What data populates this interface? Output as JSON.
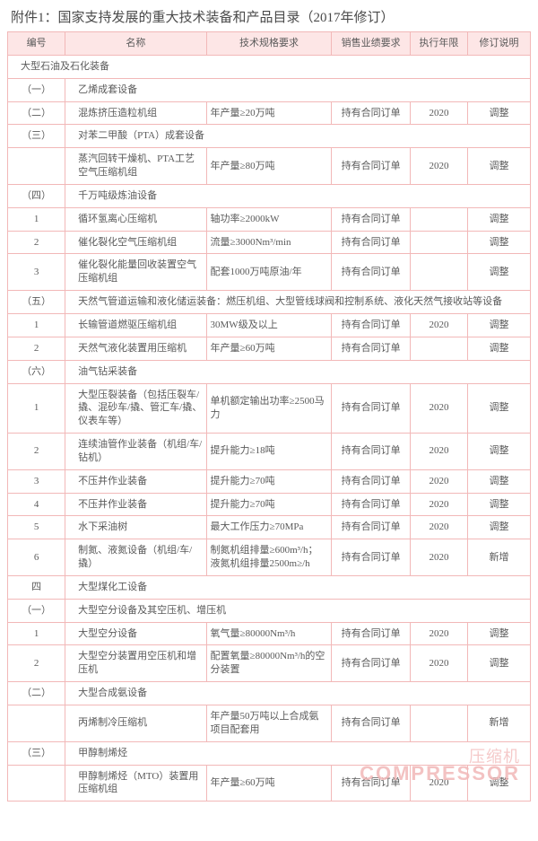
{
  "title": "附件1：国家支持发展的重大技术装备和产品目录（2017年修订）",
  "headers": {
    "num": "编号",
    "name": "名称",
    "spec": "技术规格要求",
    "sales": "销售业绩要求",
    "year": "执行年限",
    "rev": "修订说明"
  },
  "watermark_cn": "压缩机",
  "watermark_en": "COMPRESSOR",
  "colors": {
    "border": "#f2b8b8",
    "header_bg": "#fde6e6",
    "text": "#5a5a5a",
    "watermark": "#f2b8b8"
  },
  "rows": [
    {
      "type": "section",
      "num": "",
      "name": "大型石油及石化装备"
    },
    {
      "type": "sub",
      "num": "（一）",
      "name": "乙烯成套设备"
    },
    {
      "type": "data",
      "num": "（二）",
      "name": "混炼挤压造粒机组",
      "spec": "年产量≥20万吨",
      "sales": "持有合同订单",
      "year": "2020",
      "rev": "调整"
    },
    {
      "type": "sub",
      "num": "（三）",
      "name": "对苯二甲酸（PTA）成套设备"
    },
    {
      "type": "data",
      "num": "",
      "name": "蒸汽回转干燥机、PTA工艺空气压缩机组",
      "spec": "年产量≥80万吨",
      "sales": "持有合同订单",
      "year": "2020",
      "rev": "调整"
    },
    {
      "type": "sub",
      "num": "（四）",
      "name": "千万吨级炼油设备"
    },
    {
      "type": "data",
      "num": "1",
      "name": "循环氢离心压缩机",
      "spec": "轴功率≥2000kW",
      "sales": "持有合同订单",
      "year": "",
      "rev": "调整"
    },
    {
      "type": "data",
      "num": "2",
      "name": "催化裂化空气压缩机组",
      "spec": "流量≥3000Nm³/min",
      "sales": "持有合同订单",
      "year": "",
      "rev": "调整"
    },
    {
      "type": "data",
      "num": "3",
      "name": "催化裂化能量回收装置空气压缩机组",
      "spec": "配套1000万吨原油/年",
      "sales": "持有合同订单",
      "year": "",
      "rev": "调整"
    },
    {
      "type": "sub",
      "num": "（五）",
      "name": "天然气管道运输和液化储运装备：燃压机组、大型管线球阀和控制系统、液化天然气接收站等设备"
    },
    {
      "type": "data",
      "num": "1",
      "name": "长输管道燃驱压缩机组",
      "spec": "30MW级及以上",
      "sales": "持有合同订单",
      "year": "2020",
      "rev": "调整"
    },
    {
      "type": "data",
      "num": "2",
      "name": "天然气液化装置用压缩机",
      "spec": "年产量≥60万吨",
      "sales": "持有合同订单",
      "year": "",
      "rev": "调整"
    },
    {
      "type": "sub",
      "num": "（六）",
      "name": "油气钻采装备"
    },
    {
      "type": "data",
      "num": "1",
      "name": "大型压裂装备（包括压裂车/撬、混砂车/撬、管汇车/撬、仪表车等）",
      "spec": "单机额定输出功率≥2500马力",
      "sales": "持有合同订单",
      "year": "2020",
      "rev": "调整"
    },
    {
      "type": "data",
      "num": "2",
      "name": "连续油管作业装备（机组/车/钻机）",
      "spec": "提升能力≥18吨",
      "sales": "持有合同订单",
      "year": "2020",
      "rev": "调整"
    },
    {
      "type": "data",
      "num": "3",
      "name": "不压井作业装备",
      "spec": "提升能力≥70吨",
      "sales": "持有合同订单",
      "year": "2020",
      "rev": "调整"
    },
    {
      "type": "data",
      "num": "4",
      "name": "不压井作业装备",
      "spec": "提升能力≥70吨",
      "sales": "持有合同订单",
      "year": "2020",
      "rev": "调整"
    },
    {
      "type": "data",
      "num": "5",
      "name": "水下采油树",
      "spec": "最大工作压力≥70MPa",
      "sales": "持有合同订单",
      "year": "2020",
      "rev": "调整"
    },
    {
      "type": "data",
      "num": "6",
      "name": "制氮、液氮设备（机组/车/撬）",
      "spec": "制氮机组排量≥600m³/h；液氮机组排量2500m≥/h",
      "sales": "持有合同订单",
      "year": "2020",
      "rev": "新增"
    },
    {
      "type": "sub",
      "num": "四",
      "name": "大型煤化工设备"
    },
    {
      "type": "sub",
      "num": "（一）",
      "name": "大型空分设备及其空压机、增压机"
    },
    {
      "type": "data",
      "num": "1",
      "name": "大型空分设备",
      "spec": "氧气量≥80000Nm³/h",
      "sales": "持有合同订单",
      "year": "2020",
      "rev": "调整"
    },
    {
      "type": "data",
      "num": "2",
      "name": "大型空分装置用空压机和增压机",
      "spec": "配置氧量≥80000Nm³/h的空分装置",
      "sales": "持有合同订单",
      "year": "2020",
      "rev": "调整"
    },
    {
      "type": "sub",
      "num": "（二）",
      "name": "大型合成氨设备"
    },
    {
      "type": "data",
      "num": "",
      "name": "丙烯制冷压缩机",
      "spec": "年产量50万吨以上合成氨项目配套用",
      "sales": "持有合同订单",
      "year": "",
      "rev": "新增"
    },
    {
      "type": "sub",
      "num": "（三）",
      "name": "甲醇制烯烃"
    },
    {
      "type": "data",
      "num": "",
      "name": "甲醇制烯烃（MTO）装置用压缩机组",
      "spec": "年产量≥60万吨",
      "sales": "持有合同订单",
      "year": "2020",
      "rev": "调整"
    }
  ]
}
